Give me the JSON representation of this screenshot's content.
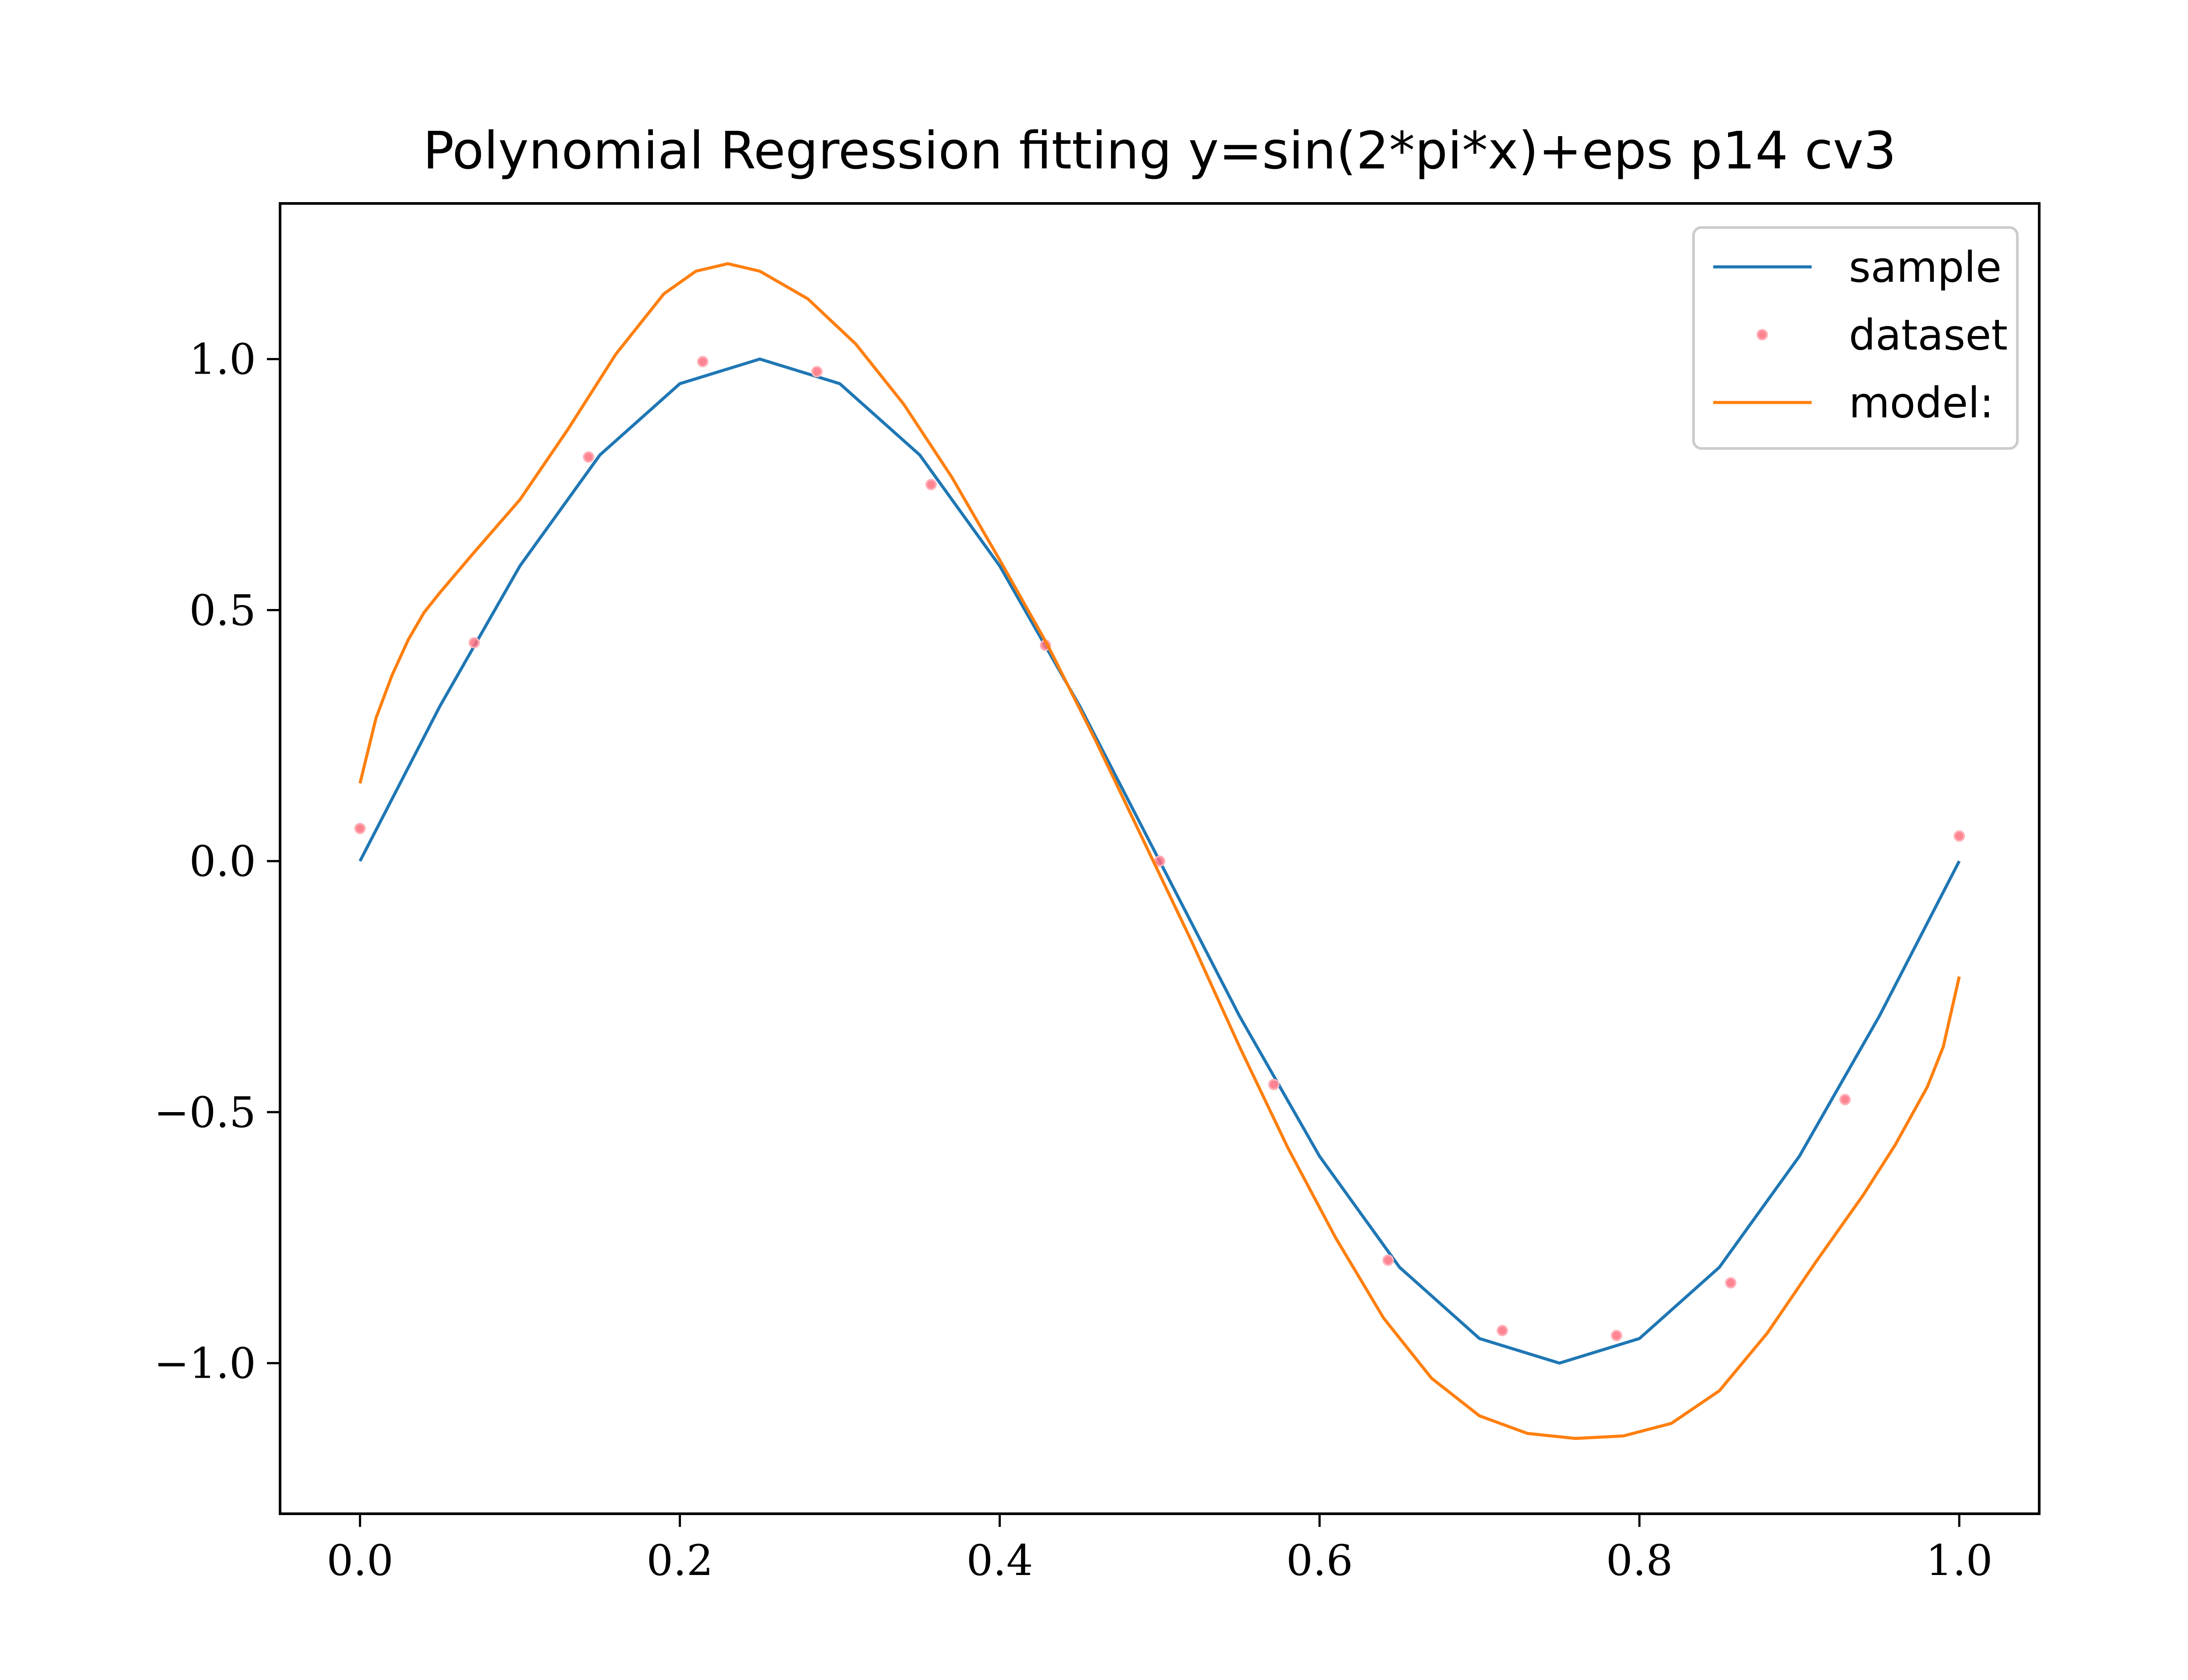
{
  "chart_data": {
    "type": "line",
    "title": "Polynomial Regression fitting y=sin(2*pi*x)+eps p14 cv3",
    "xlabel": "",
    "ylabel": "",
    "xlim": [
      -0.05,
      1.05
    ],
    "ylim": [
      -1.3,
      1.31
    ],
    "x_ticks": [
      0.0,
      0.2,
      0.4,
      0.6,
      0.8,
      1.0
    ],
    "x_tick_labels": [
      "0.0",
      "0.2",
      "0.4",
      "0.6",
      "0.8",
      "1.0"
    ],
    "y_ticks": [
      1.0,
      0.5,
      0.0,
      -0.5,
      -1.0
    ],
    "y_tick_labels": [
      "1.0",
      "0.5",
      "0.0",
      "−0.5",
      "−1.0"
    ],
    "grid": false,
    "legend_position": "top-right",
    "series": [
      {
        "name": "sample",
        "style": "line",
        "color": "#1f77b4",
        "x": [
          0.0,
          0.05,
          0.1,
          0.15,
          0.2,
          0.25,
          0.3,
          0.35,
          0.4,
          0.45,
          0.5,
          0.55,
          0.6,
          0.65,
          0.7,
          0.75,
          0.8,
          0.85,
          0.9,
          0.95,
          1.0
        ],
        "y": [
          0.0,
          0.309,
          0.588,
          0.809,
          0.951,
          1.0,
          0.951,
          0.809,
          0.588,
          0.309,
          0.0,
          -0.309,
          -0.588,
          -0.809,
          -0.951,
          -1.0,
          -0.951,
          -0.809,
          -0.588,
          -0.309,
          0.0
        ]
      },
      {
        "name": "dataset",
        "style": "scatter",
        "color": "#ff6f7f",
        "x": [
          0.0,
          0.0714,
          0.1429,
          0.2143,
          0.2857,
          0.3571,
          0.4286,
          0.5,
          0.5714,
          0.6429,
          0.7143,
          0.7857,
          0.8571,
          0.9286,
          1.0
        ],
        "y": [
          0.065,
          0.435,
          0.805,
          0.995,
          0.975,
          0.75,
          0.43,
          0.0,
          -0.445,
          -0.795,
          -0.935,
          -0.945,
          -0.84,
          -0.475,
          0.05
        ]
      },
      {
        "name": "model:",
        "style": "line",
        "color": "#ff7f0e",
        "x": [
          0.0,
          0.01,
          0.02,
          0.03,
          0.04,
          0.05,
          0.07,
          0.1,
          0.13,
          0.16,
          0.19,
          0.21,
          0.23,
          0.25,
          0.28,
          0.31,
          0.34,
          0.37,
          0.4,
          0.43,
          0.46,
          0.49,
          0.52,
          0.55,
          0.58,
          0.61,
          0.64,
          0.67,
          0.7,
          0.73,
          0.76,
          0.79,
          0.82,
          0.85,
          0.88,
          0.91,
          0.94,
          0.96,
          0.98,
          0.99,
          1.0
        ],
        "y": [
          0.155,
          0.285,
          0.37,
          0.44,
          0.495,
          0.535,
          0.61,
          0.72,
          0.86,
          1.01,
          1.13,
          1.175,
          1.19,
          1.175,
          1.12,
          1.03,
          0.91,
          0.765,
          0.6,
          0.43,
          0.24,
          0.04,
          -0.16,
          -0.37,
          -0.57,
          -0.75,
          -0.91,
          -1.03,
          -1.105,
          -1.14,
          -1.15,
          -1.145,
          -1.12,
          -1.055,
          -0.94,
          -0.8,
          -0.665,
          -0.565,
          -0.45,
          -0.37,
          -0.23
        ]
      }
    ]
  }
}
